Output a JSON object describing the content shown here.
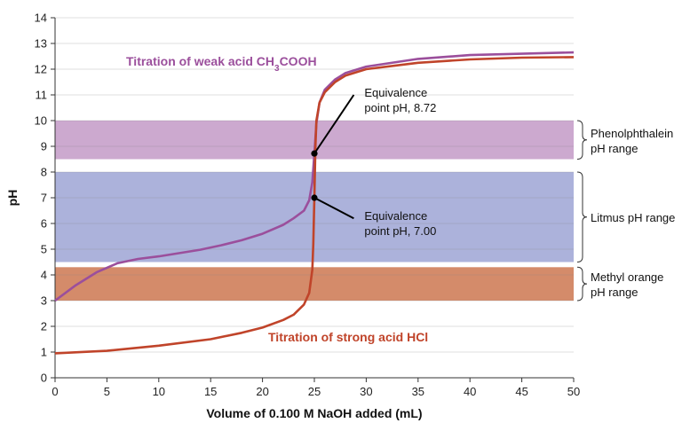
{
  "chart_data": {
    "type": "line",
    "title": "",
    "xlabel": "Volume of 0.100 M NaOH added (mL)",
    "ylabel": "pH",
    "xlim": [
      0,
      50
    ],
    "ylim": [
      0,
      14
    ],
    "x_ticks": [
      0,
      5,
      10,
      15,
      20,
      25,
      30,
      35,
      40,
      45,
      50
    ],
    "y_ticks": [
      0,
      1,
      2,
      3,
      4,
      5,
      6,
      7,
      8,
      9,
      10,
      11,
      12,
      13,
      14
    ],
    "grid": "horizontal",
    "series": [
      {
        "label_main": "Titration of weak acid CH",
        "label_sub": "3",
        "label_tail": "COOH",
        "color": "#9b4f9c",
        "x": [
          0,
          2,
          4,
          6,
          8,
          10,
          12,
          14,
          16,
          18,
          20,
          22,
          23,
          24,
          24.5,
          24.8,
          25,
          25.2,
          25.5,
          26,
          27,
          28,
          30,
          35,
          40,
          45,
          50
        ],
        "y": [
          3.0,
          3.6,
          4.1,
          4.45,
          4.62,
          4.72,
          4.85,
          4.98,
          5.15,
          5.35,
          5.6,
          5.95,
          6.2,
          6.5,
          6.9,
          7.6,
          8.72,
          9.9,
          10.7,
          11.2,
          11.6,
          11.85,
          12.1,
          12.4,
          12.55,
          12.6,
          12.65
        ]
      },
      {
        "label_main": "Titration of strong acid HCl",
        "label_sub": "",
        "label_tail": "",
        "color": "#c0442a",
        "x": [
          0,
          5,
          10,
          15,
          18,
          20,
          22,
          23,
          24,
          24.5,
          24.8,
          24.9,
          25,
          25.1,
          25.2,
          25.5,
          26,
          27,
          28,
          30,
          35,
          40,
          45,
          50
        ],
        "y": [
          0.95,
          1.05,
          1.25,
          1.5,
          1.75,
          1.95,
          2.25,
          2.45,
          2.85,
          3.3,
          4.2,
          5.2,
          7.0,
          9.0,
          10.0,
          10.7,
          11.1,
          11.5,
          11.75,
          12.0,
          12.25,
          12.38,
          12.45,
          12.47
        ]
      }
    ],
    "bands": [
      {
        "label_line1": "Phenolphthalein",
        "label_line2": "pH range",
        "y0": 8.5,
        "y1": 10.0,
        "color": "#c9a4cc"
      },
      {
        "label_line1": "Litmus pH range",
        "label_line2": "",
        "y0": 4.5,
        "y1": 8.0,
        "color": "#a8aed9"
      },
      {
        "label_line1": "Methyl orange",
        "label_line2": "pH range",
        "y0": 3.0,
        "y1": 4.3,
        "color": "#d28562"
      }
    ],
    "annotations": [
      {
        "line1": "Equivalence",
        "line2": "point pH, 8.72",
        "x": 25,
        "y": 8.72,
        "text_x": 30,
        "text_y": 11.0
      },
      {
        "line1": "Equivalence",
        "line2": "point pH, 7.00",
        "x": 25,
        "y": 7.0,
        "text_x": 30,
        "text_y": 6.2
      }
    ]
  }
}
